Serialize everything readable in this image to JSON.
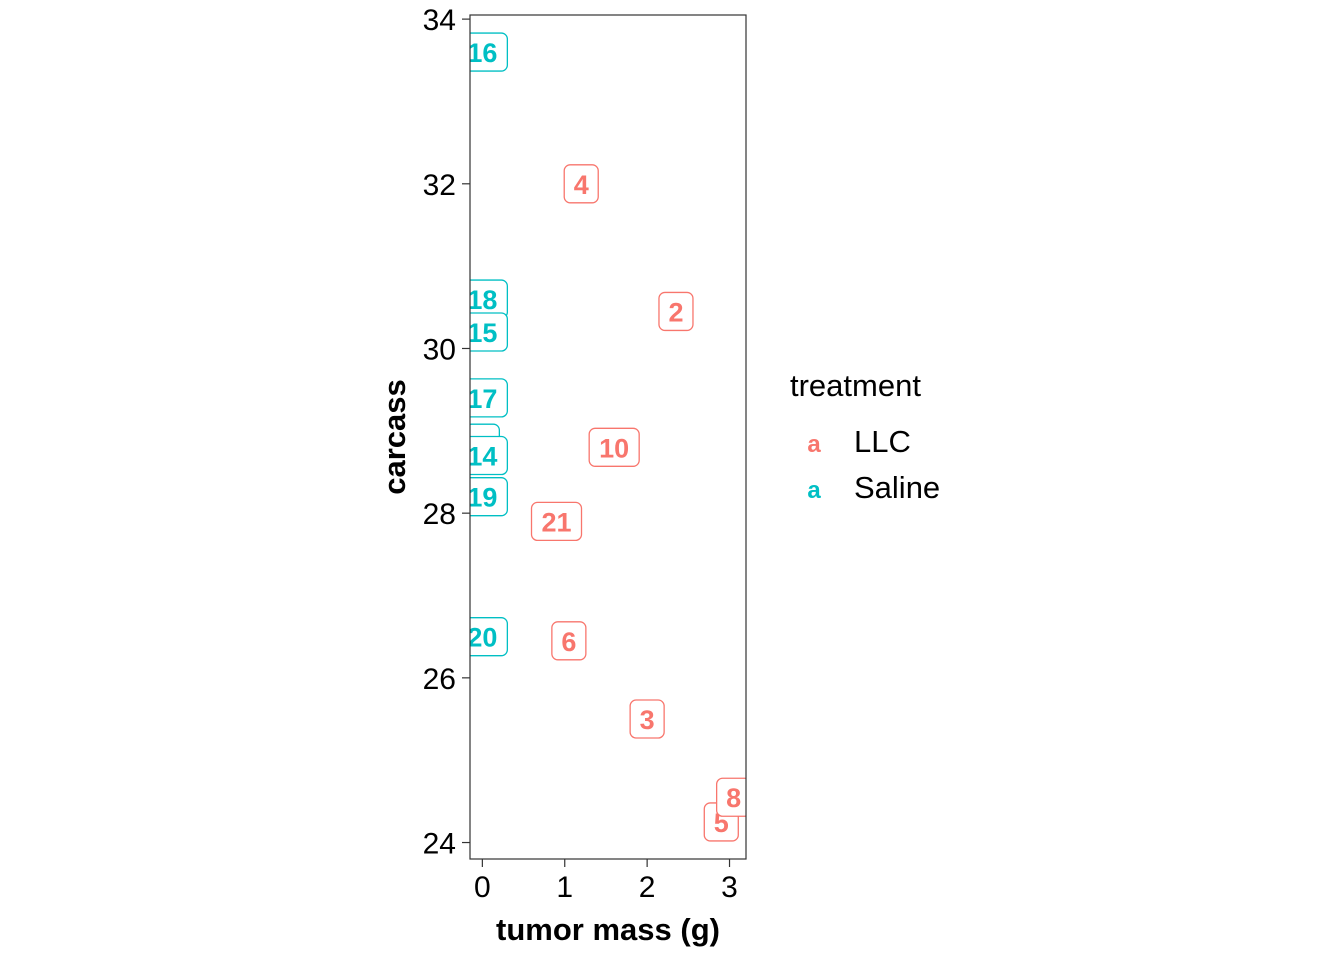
{
  "chart_data": {
    "type": "scatter",
    "xlabel": "tumor mass (g)",
    "ylabel": "carcass",
    "xlim": [
      -0.15,
      3.2
    ],
    "ylim": [
      23.8,
      34.05
    ],
    "xticks": [
      0,
      1,
      2,
      3
    ],
    "yticks": [
      24,
      26,
      28,
      30,
      32,
      34
    ],
    "grid": false,
    "legend": {
      "title": "treatment",
      "placement": "right",
      "key_glyph": "a",
      "entries": [
        {
          "name": "LLC",
          "color": "#F8766D"
        },
        {
          "name": "Saline",
          "color": "#00BFC4"
        }
      ]
    },
    "series": [
      {
        "name": "LLC",
        "color": "#F8766D",
        "points": [
          {
            "label": "4",
            "x": 1.2,
            "y": 32.0
          },
          {
            "label": "2",
            "x": 2.35,
            "y": 30.45
          },
          {
            "label": "10",
            "x": 1.6,
            "y": 28.8
          },
          {
            "label": "21",
            "x": 0.9,
            "y": 27.9
          },
          {
            "label": "6",
            "x": 1.05,
            "y": 26.45
          },
          {
            "label": "3",
            "x": 2.0,
            "y": 25.5
          },
          {
            "label": "5",
            "x": 2.9,
            "y": 24.25
          },
          {
            "label": "8",
            "x": 3.05,
            "y": 24.55
          }
        ]
      },
      {
        "name": "Saline",
        "color": "#00BFC4",
        "points": [
          {
            "label": "16",
            "x": 0.0,
            "y": 33.6
          },
          {
            "label": "18",
            "x": 0.0,
            "y": 30.6
          },
          {
            "label": "15",
            "x": 0.0,
            "y": 30.2
          },
          {
            "label": "17",
            "x": 0.0,
            "y": 29.4
          },
          {
            "label": "",
            "x": 0.0,
            "y": 28.85
          },
          {
            "label": "14",
            "x": 0.0,
            "y": 28.7
          },
          {
            "label": "19",
            "x": 0.0,
            "y": 28.2
          },
          {
            "label": "20",
            "x": 0.0,
            "y": 26.5
          }
        ]
      }
    ]
  }
}
